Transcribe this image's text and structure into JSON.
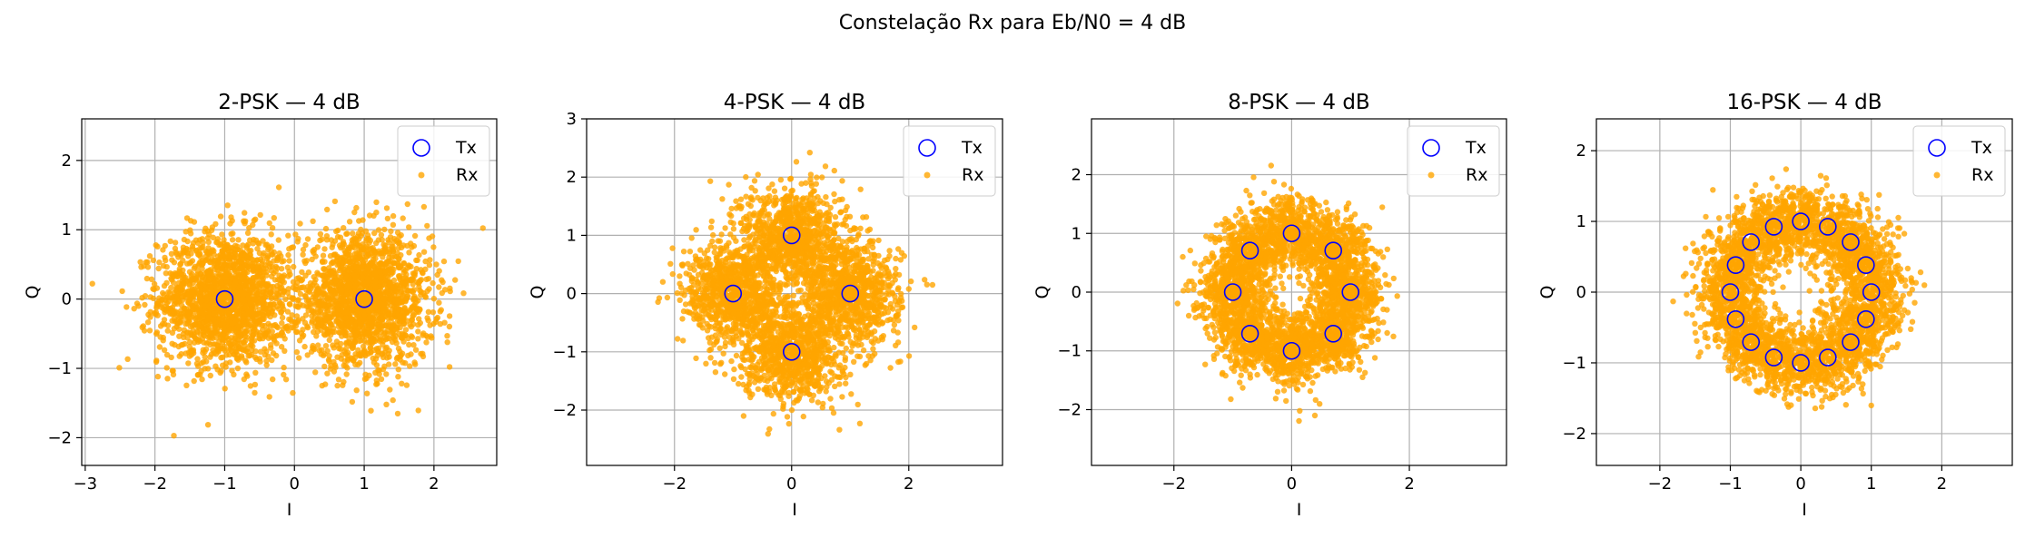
{
  "figure": {
    "suptitle": "Constelação Rx para Eb/N0 = 4 dB",
    "colors": {
      "rx": "#ffa500",
      "tx_edge": "#0000ff",
      "grid": "#b0b0b0"
    }
  },
  "chart_data": [
    {
      "type": "scatter",
      "title": "2-PSK — 4 dB",
      "xlabel": "I",
      "ylabel": "Q",
      "xlim": [
        -3.05,
        2.9
      ],
      "ylim": [
        -2.4,
        2.6
      ],
      "xticks": [
        -3,
        -2,
        -1,
        0,
        1,
        2
      ],
      "yticks": [
        -2,
        -1,
        0,
        1,
        2
      ],
      "grid": true,
      "legend": {
        "placement": "top-right",
        "entries": [
          "Tx",
          "Rx"
        ]
      },
      "tx_points": [
        [
          -1,
          0
        ],
        [
          1,
          0
        ]
      ],
      "rx_noise_sigma": 0.47
    },
    {
      "type": "scatter",
      "title": "4-PSK — 4 dB",
      "xlabel": "I",
      "ylabel": "Q",
      "xlim": [
        -3.5,
        3.6
      ],
      "ylim": [
        -2.95,
        3.0
      ],
      "xticks": [
        -2,
        0,
        2
      ],
      "yticks": [
        -2,
        -1,
        0,
        1,
        2,
        3
      ],
      "grid": true,
      "legend": {
        "placement": "top-right",
        "entries": [
          "Tx",
          "Rx"
        ]
      },
      "tx_points": [
        [
          1,
          0
        ],
        [
          0,
          1
        ],
        [
          -1,
          0
        ],
        [
          0,
          -1
        ]
      ],
      "rx_noise_sigma": 0.43
    },
    {
      "type": "scatter",
      "title": "8-PSK — 4 dB",
      "xlabel": "I",
      "ylabel": "Q",
      "xlim": [
        -3.4,
        3.65
      ],
      "ylim": [
        -2.95,
        2.95
      ],
      "xticks": [
        -2,
        0,
        2
      ],
      "yticks": [
        -2,
        -1,
        0,
        1,
        2
      ],
      "grid": true,
      "legend": {
        "placement": "top-right",
        "entries": [
          "Tx",
          "Rx"
        ]
      },
      "tx_points": [
        [
          1,
          0
        ],
        [
          0.707,
          0.707
        ],
        [
          0,
          1
        ],
        [
          -0.707,
          0.707
        ],
        [
          -1,
          0
        ],
        [
          -0.707,
          -0.707
        ],
        [
          0,
          -1
        ],
        [
          0.707,
          -0.707
        ]
      ],
      "rx_noise_sigma": 0.3
    },
    {
      "type": "scatter",
      "title": "16-PSK — 4 dB",
      "xlabel": "I",
      "ylabel": "Q",
      "xlim": [
        -2.9,
        3.0
      ],
      "ylim": [
        -2.45,
        2.45
      ],
      "xticks": [
        -2,
        -1,
        0,
        1,
        2
      ],
      "yticks": [
        -2,
        -1,
        0,
        1,
        2
      ],
      "grid": true,
      "legend": {
        "placement": "top-right",
        "entries": [
          "Tx",
          "Rx"
        ]
      },
      "tx_points": [
        [
          1,
          0
        ],
        [
          0.924,
          0.383
        ],
        [
          0.707,
          0.707
        ],
        [
          0.383,
          0.924
        ],
        [
          0,
          1
        ],
        [
          -0.383,
          0.924
        ],
        [
          -0.707,
          0.707
        ],
        [
          -0.924,
          0.383
        ],
        [
          -1,
          0
        ],
        [
          -0.924,
          -0.383
        ],
        [
          -0.707,
          -0.707
        ],
        [
          -0.383,
          -0.924
        ],
        [
          0,
          -1
        ],
        [
          0.383,
          -0.924
        ],
        [
          0.707,
          -0.707
        ],
        [
          0.924,
          -0.383
        ]
      ],
      "rx_noise_sigma": 0.25
    }
  ]
}
